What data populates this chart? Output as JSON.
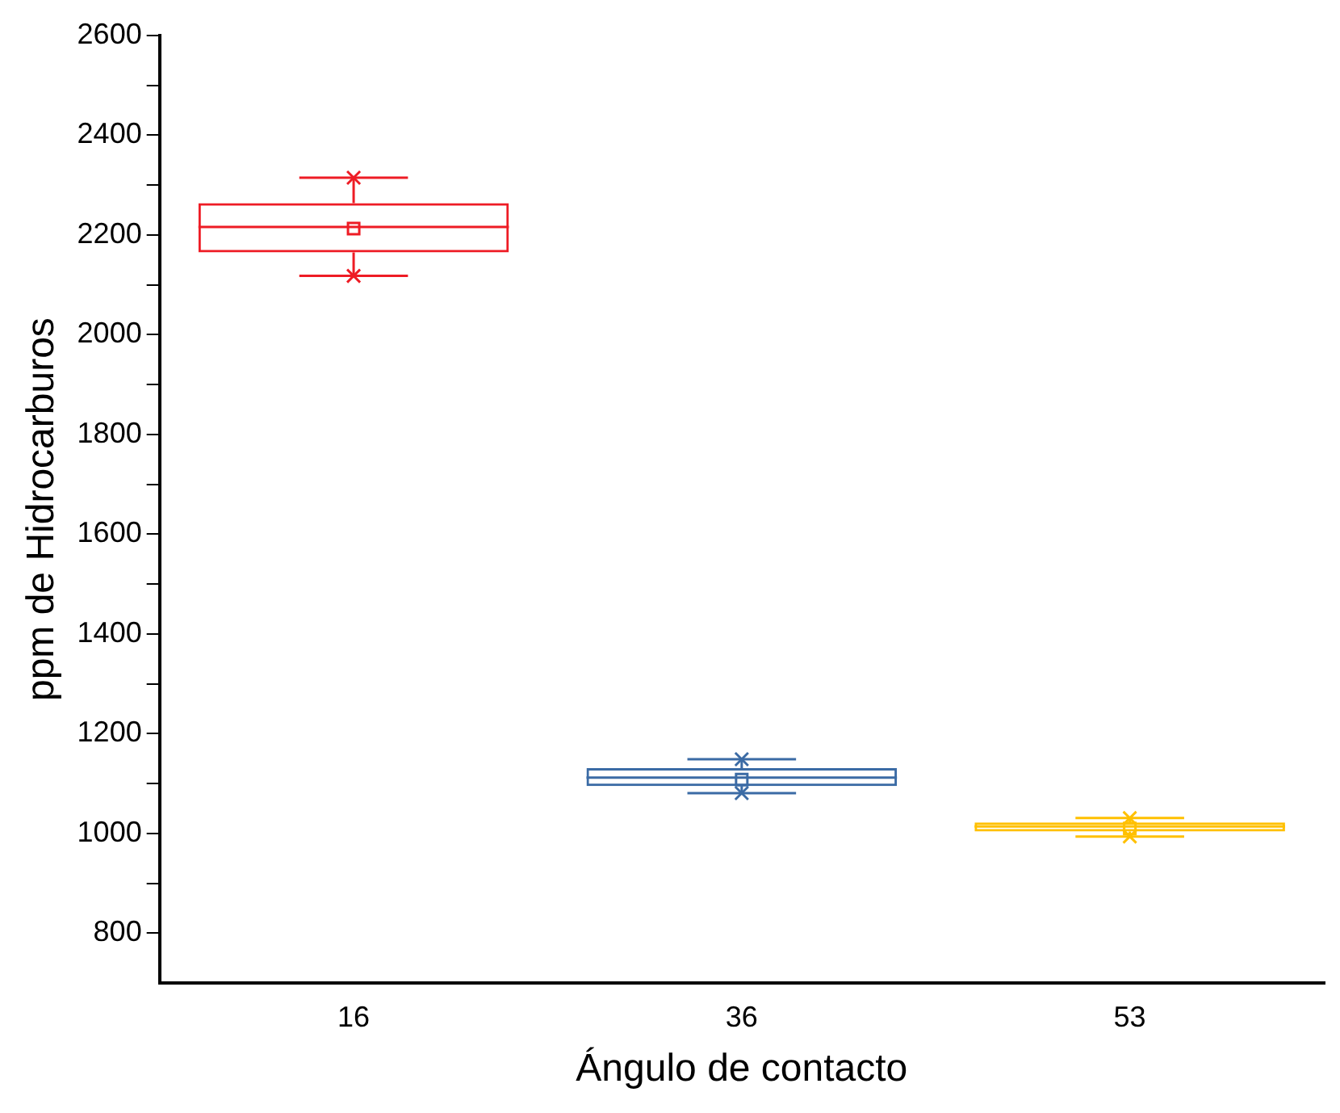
{
  "chart_data": {
    "type": "box",
    "xlabel": "Ángulo de contacto",
    "ylabel": "ppm de Hidrocarburos",
    "categories": [
      "16",
      "36",
      "53"
    ],
    "colors": [
      "#ee1c25",
      "#3b6ba5",
      "#ffc000"
    ],
    "boxes": [
      {
        "low": 2118,
        "q1": 2165,
        "median": 2216,
        "q3": 2264,
        "high": 2315,
        "mean": 2213,
        "outliers": [
          2315,
          2118
        ]
      },
      {
        "low": 1081,
        "q1": 1095,
        "median": 1112,
        "q3": 1131,
        "high": 1149,
        "mean": 1108,
        "outliers": [
          1149,
          1081
        ]
      },
      {
        "low": 994,
        "q1": 1004,
        "median": 1014,
        "q3": 1022,
        "high": 1031,
        "mean": 1010,
        "outliers": [
          1031,
          994
        ]
      }
    ],
    "ylim": [
      700,
      2600
    ],
    "yticks": [
      800,
      {
        "value": 900,
        "label": null
      },
      1000,
      {
        "value": 1100,
        "label": null
      },
      1200,
      {
        "value": 1300,
        "label": null
      },
      1400,
      {
        "value": 1500,
        "label": null
      },
      1600,
      {
        "value": 1700,
        "label": null
      },
      1800,
      {
        "value": 1900,
        "label": null
      },
      2000,
      {
        "value": 2100,
        "label": null
      },
      2200,
      {
        "value": 2300,
        "label": null
      },
      2400,
      {
        "value": 2500,
        "label": null
      },
      2600
    ],
    "grid": false,
    "legend": false,
    "marker": "square"
  }
}
